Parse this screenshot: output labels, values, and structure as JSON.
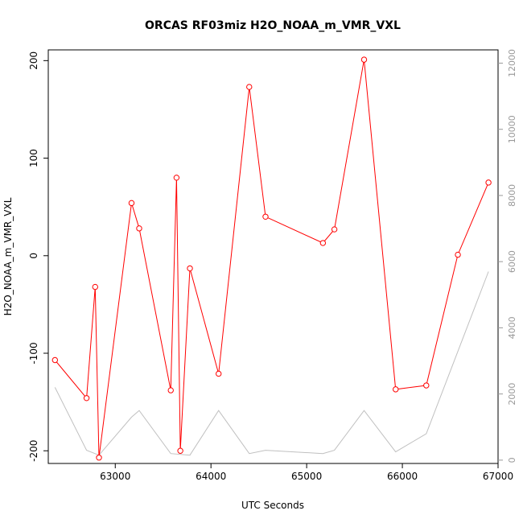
{
  "chart_data": {
    "type": "line",
    "title": "ORCAS RF03miz H2O_NOAA_m_VMR_VXL",
    "xlabel": "UTC Seconds",
    "ylabel": "H2O_NOAA_m_VMR_VXL",
    "xlim": [
      62300,
      67000
    ],
    "ylim": [
      -213,
      211
    ],
    "y2lim": [
      -100,
      12400
    ],
    "x_ticks": [
      63000,
      64000,
      65000,
      66000,
      67000
    ],
    "x_tick_labels": [
      "63000",
      "64000",
      "65000",
      "66000",
      "67000"
    ],
    "y_ticks": [
      -200,
      -100,
      0,
      100,
      200
    ],
    "y_tick_labels": [
      "-200",
      "-100",
      "0",
      "100",
      "200"
    ],
    "y2_ticks": [
      0,
      2000,
      4000,
      6000,
      8000,
      10000,
      12000
    ],
    "y2_tick_labels": [
      "0",
      "2000",
      "4000",
      "6000",
      "8000",
      "10000",
      "12000"
    ],
    "grid": false,
    "series": [
      {
        "axis": "left",
        "color": "#ff0000",
        "marker": "open-circle",
        "points": [
          [
            62370,
            -107
          ],
          [
            62700,
            -146
          ],
          [
            62790,
            -32
          ],
          [
            62830,
            -207
          ],
          [
            63170,
            54
          ],
          [
            63250,
            28
          ],
          [
            63580,
            -138
          ],
          [
            63640,
            80
          ],
          [
            63680,
            -200
          ],
          [
            63780,
            -13
          ],
          [
            64080,
            -121
          ],
          [
            64400,
            173
          ],
          [
            64570,
            40
          ],
          [
            65170,
            13
          ],
          [
            65290,
            27
          ],
          [
            65600,
            201
          ],
          [
            65930,
            -137
          ],
          [
            66250,
            -133
          ],
          [
            66580,
            1
          ],
          [
            66900,
            75
          ]
        ]
      },
      {
        "axis": "right",
        "color": "#c0c0c0",
        "marker": "none",
        "points": [
          [
            62370,
            2200
          ],
          [
            62700,
            300
          ],
          [
            62830,
            150
          ],
          [
            63170,
            1300
          ],
          [
            63250,
            1500
          ],
          [
            63580,
            200
          ],
          [
            63780,
            150
          ],
          [
            64080,
            1500
          ],
          [
            64400,
            200
          ],
          [
            64570,
            300
          ],
          [
            65170,
            200
          ],
          [
            65290,
            300
          ],
          [
            65600,
            1500
          ],
          [
            65930,
            250
          ],
          [
            66250,
            800
          ],
          [
            66900,
            5700
          ]
        ]
      }
    ]
  }
}
